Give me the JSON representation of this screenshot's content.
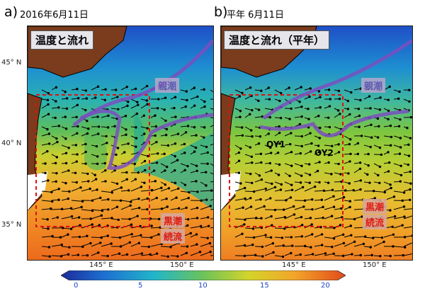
{
  "panel_a": {
    "letter": "a)",
    "date": "2016年6月11日",
    "title": "温度と流れ",
    "labels": {
      "oyashio": "親潮",
      "kuroshio_1": "黒潮",
      "kuroshio_2": "続流"
    },
    "lat_labels": [
      "45° N",
      "40° N",
      "35° N"
    ],
    "lon_labels": [
      "145° E",
      "150° E"
    ]
  },
  "panel_b": {
    "letter": "b)",
    "date": "平年  6月11日",
    "title": "温度と流れ（平年）",
    "labels": {
      "oyashio": "親潮",
      "kuroshio_1": "黒潮",
      "kuroshio_2": "続流",
      "oy1": "OY1",
      "oy2": "OY2"
    },
    "lon_labels": [
      "145° E",
      "150° E"
    ]
  },
  "colorbar": {
    "ticks": [
      "0",
      "5",
      "10",
      "15",
      "20"
    ],
    "colors": [
      "#1a2a9a",
      "#1e6fd1",
      "#22b6c8",
      "#6cc35a",
      "#d4d42a",
      "#f2a62a",
      "#e24a1a"
    ]
  }
}
